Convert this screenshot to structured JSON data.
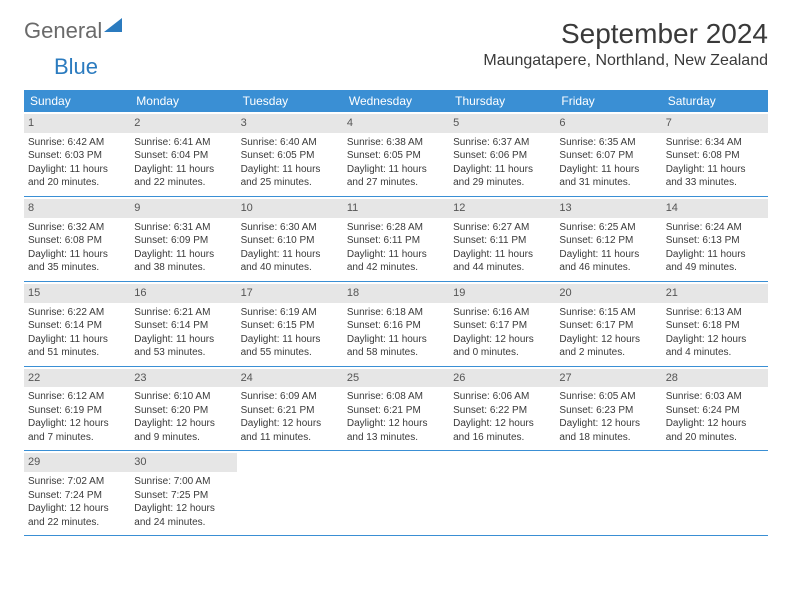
{
  "brand": {
    "part1": "General",
    "part2": "Blue"
  },
  "title": "September 2024",
  "location": "Maungatapere, Northland, New Zealand",
  "colors": {
    "header_bg": "#3a8fd4",
    "header_text": "#ffffff",
    "rule": "#3a8fd4",
    "daynum_bg": "#e6e6e6",
    "body_text": "#3a3a3a",
    "logo_gray": "#6a6a6a",
    "logo_blue": "#2b7bbf"
  },
  "day_headers": [
    "Sunday",
    "Monday",
    "Tuesday",
    "Wednesday",
    "Thursday",
    "Friday",
    "Saturday"
  ],
  "weeks": [
    [
      {
        "num": "1",
        "sunrise": "6:42 AM",
        "sunset": "6:03 PM",
        "daylight": "11 hours and 20 minutes."
      },
      {
        "num": "2",
        "sunrise": "6:41 AM",
        "sunset": "6:04 PM",
        "daylight": "11 hours and 22 minutes."
      },
      {
        "num": "3",
        "sunrise": "6:40 AM",
        "sunset": "6:05 PM",
        "daylight": "11 hours and 25 minutes."
      },
      {
        "num": "4",
        "sunrise": "6:38 AM",
        "sunset": "6:05 PM",
        "daylight": "11 hours and 27 minutes."
      },
      {
        "num": "5",
        "sunrise": "6:37 AM",
        "sunset": "6:06 PM",
        "daylight": "11 hours and 29 minutes."
      },
      {
        "num": "6",
        "sunrise": "6:35 AM",
        "sunset": "6:07 PM",
        "daylight": "11 hours and 31 minutes."
      },
      {
        "num": "7",
        "sunrise": "6:34 AM",
        "sunset": "6:08 PM",
        "daylight": "11 hours and 33 minutes."
      }
    ],
    [
      {
        "num": "8",
        "sunrise": "6:32 AM",
        "sunset": "6:08 PM",
        "daylight": "11 hours and 35 minutes."
      },
      {
        "num": "9",
        "sunrise": "6:31 AM",
        "sunset": "6:09 PM",
        "daylight": "11 hours and 38 minutes."
      },
      {
        "num": "10",
        "sunrise": "6:30 AM",
        "sunset": "6:10 PM",
        "daylight": "11 hours and 40 minutes."
      },
      {
        "num": "11",
        "sunrise": "6:28 AM",
        "sunset": "6:11 PM",
        "daylight": "11 hours and 42 minutes."
      },
      {
        "num": "12",
        "sunrise": "6:27 AM",
        "sunset": "6:11 PM",
        "daylight": "11 hours and 44 minutes."
      },
      {
        "num": "13",
        "sunrise": "6:25 AM",
        "sunset": "6:12 PM",
        "daylight": "11 hours and 46 minutes."
      },
      {
        "num": "14",
        "sunrise": "6:24 AM",
        "sunset": "6:13 PM",
        "daylight": "11 hours and 49 minutes."
      }
    ],
    [
      {
        "num": "15",
        "sunrise": "6:22 AM",
        "sunset": "6:14 PM",
        "daylight": "11 hours and 51 minutes."
      },
      {
        "num": "16",
        "sunrise": "6:21 AM",
        "sunset": "6:14 PM",
        "daylight": "11 hours and 53 minutes."
      },
      {
        "num": "17",
        "sunrise": "6:19 AM",
        "sunset": "6:15 PM",
        "daylight": "11 hours and 55 minutes."
      },
      {
        "num": "18",
        "sunrise": "6:18 AM",
        "sunset": "6:16 PM",
        "daylight": "11 hours and 58 minutes."
      },
      {
        "num": "19",
        "sunrise": "6:16 AM",
        "sunset": "6:17 PM",
        "daylight": "12 hours and 0 minutes."
      },
      {
        "num": "20",
        "sunrise": "6:15 AM",
        "sunset": "6:17 PM",
        "daylight": "12 hours and 2 minutes."
      },
      {
        "num": "21",
        "sunrise": "6:13 AM",
        "sunset": "6:18 PM",
        "daylight": "12 hours and 4 minutes."
      }
    ],
    [
      {
        "num": "22",
        "sunrise": "6:12 AM",
        "sunset": "6:19 PM",
        "daylight": "12 hours and 7 minutes."
      },
      {
        "num": "23",
        "sunrise": "6:10 AM",
        "sunset": "6:20 PM",
        "daylight": "12 hours and 9 minutes."
      },
      {
        "num": "24",
        "sunrise": "6:09 AM",
        "sunset": "6:21 PM",
        "daylight": "12 hours and 11 minutes."
      },
      {
        "num": "25",
        "sunrise": "6:08 AM",
        "sunset": "6:21 PM",
        "daylight": "12 hours and 13 minutes."
      },
      {
        "num": "26",
        "sunrise": "6:06 AM",
        "sunset": "6:22 PM",
        "daylight": "12 hours and 16 minutes."
      },
      {
        "num": "27",
        "sunrise": "6:05 AM",
        "sunset": "6:23 PM",
        "daylight": "12 hours and 18 minutes."
      },
      {
        "num": "28",
        "sunrise": "6:03 AM",
        "sunset": "6:24 PM",
        "daylight": "12 hours and 20 minutes."
      }
    ],
    [
      {
        "num": "29",
        "sunrise": "7:02 AM",
        "sunset": "7:24 PM",
        "daylight": "12 hours and 22 minutes."
      },
      {
        "num": "30",
        "sunrise": "7:00 AM",
        "sunset": "7:25 PM",
        "daylight": "12 hours and 24 minutes."
      },
      null,
      null,
      null,
      null,
      null
    ]
  ],
  "labels": {
    "sunrise": "Sunrise:",
    "sunset": "Sunset:",
    "daylight": "Daylight:"
  }
}
